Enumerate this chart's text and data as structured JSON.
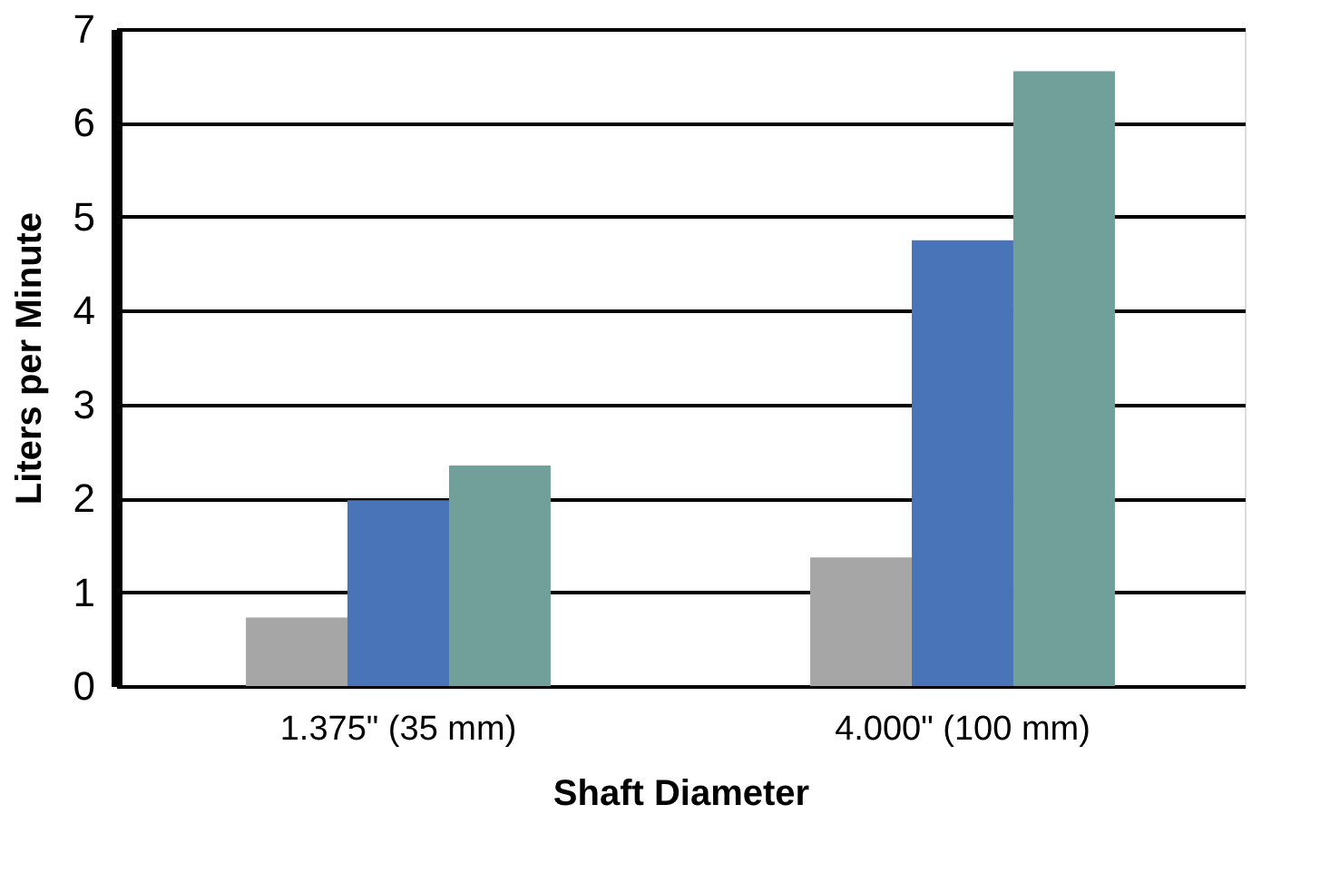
{
  "chart_data": {
    "type": "bar",
    "xlabel": "Shaft Diameter",
    "ylabel": "Liters per Minute",
    "categories": [
      "1.375\" (35 mm)",
      "4.000\" (100 mm)"
    ],
    "series": [
      {
        "color": "#a6a6a6",
        "values": [
          0.73,
          1.37
        ]
      },
      {
        "color": "#4a74b8",
        "values": [
          1.98,
          4.75
        ]
      },
      {
        "color": "#71a09a",
        "values": [
          2.35,
          6.55
        ]
      }
    ],
    "ylim": [
      0,
      7
    ],
    "yticks": [
      0,
      1,
      2,
      3,
      4,
      5,
      6,
      7
    ],
    "grid": "y",
    "legend": false
  }
}
